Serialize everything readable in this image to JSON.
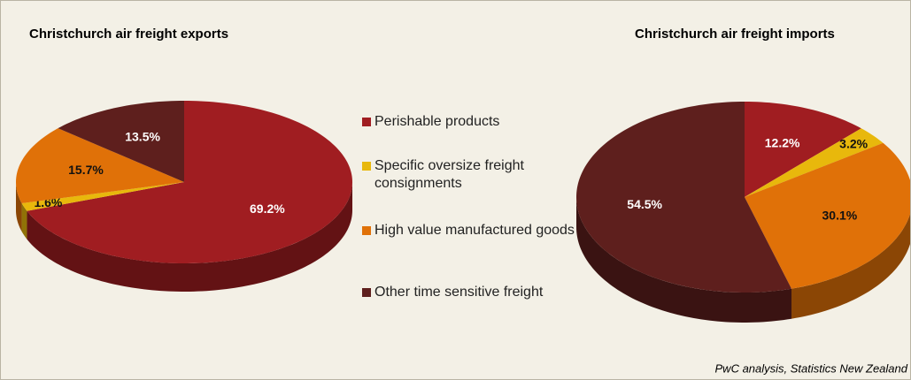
{
  "chart_data": [
    {
      "type": "pie",
      "title": "Christchurch  air freight exports",
      "categories": [
        "Perishable products",
        "Specific oversize freight consignments",
        "High value manufactured goods",
        "Other time sensitive freight"
      ],
      "values": [
        69.2,
        1.6,
        15.7,
        13.5
      ],
      "value_labels": [
        "69.2%",
        "1.6%",
        "15.7%",
        "13.5%"
      ],
      "colors": [
        "#a01d21",
        "#e8b80c",
        "#e07108",
        "#5e1f1d"
      ],
      "legend": "center"
    },
    {
      "type": "pie",
      "title": "Christchurch  air freight imports",
      "categories": [
        "Perishable products",
        "Specific oversize freight consignments",
        "High value manufactured goods",
        "Other time sensitive freight"
      ],
      "values": [
        12.2,
        3.2,
        30.1,
        54.5
      ],
      "value_labels": [
        "12.2%",
        "3.2%",
        "30.1%",
        "54.5%"
      ],
      "colors": [
        "#a01d21",
        "#e8b80c",
        "#e07108",
        "#5e1f1d"
      ]
    }
  ],
  "source": "PwC analysis, Statistics New Zealand"
}
